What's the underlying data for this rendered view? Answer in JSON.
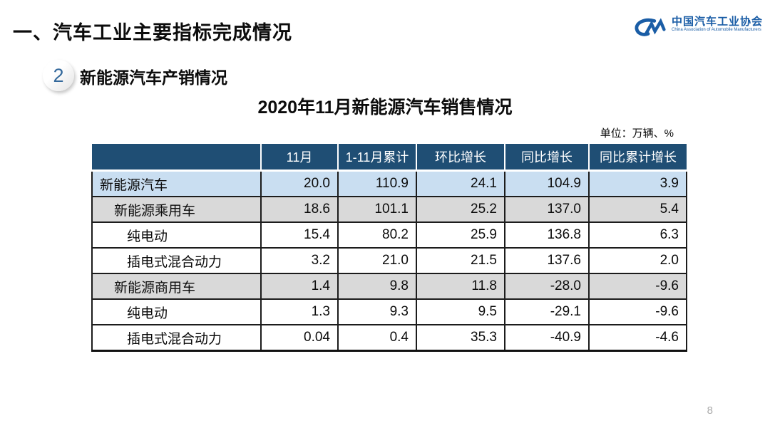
{
  "page": {
    "title": "一、汽车工业主要指标完成情况",
    "page_number": "8"
  },
  "logo": {
    "icon": "cm-logo-icon",
    "name_cn": "中国汽车工业协会",
    "name_en": "China Association of Automobile Manufacturers"
  },
  "section": {
    "badge": "2",
    "heading": "新能源汽车产销情况"
  },
  "table": {
    "title": "2020年11月新能源汽车销售情况",
    "unit_label": "单位：万辆、%",
    "columns": [
      "",
      "11月",
      "1-11月累计",
      "环比增长",
      "同比增长",
      "同比累计增长"
    ],
    "rows": [
      {
        "label": "新能源汽车",
        "indent": 0,
        "style": "highlight-blue",
        "values": [
          "20.0",
          "110.9",
          "24.1",
          "104.9",
          "3.9"
        ]
      },
      {
        "label": "新能源乘用车",
        "indent": 1,
        "style": "highlight-gray",
        "values": [
          "18.6",
          "101.1",
          "25.2",
          "137.0",
          "5.4"
        ]
      },
      {
        "label": "纯电动",
        "indent": 2,
        "style": "plain",
        "values": [
          "15.4",
          "80.2",
          "25.9",
          "136.8",
          "6.3"
        ]
      },
      {
        "label": "插电式混合动力",
        "indent": 2,
        "style": "plain",
        "values": [
          "3.2",
          "21.0",
          "21.5",
          "137.6",
          "2.0"
        ]
      },
      {
        "label": "新能源商用车",
        "indent": 1,
        "style": "highlight-gray",
        "values": [
          "1.4",
          "9.8",
          "11.8",
          "-28.0",
          "-9.6"
        ]
      },
      {
        "label": "纯电动",
        "indent": 2,
        "style": "plain",
        "values": [
          "1.3",
          "9.3",
          "9.5",
          "-29.1",
          "-9.6"
        ]
      },
      {
        "label": "插电式混合动力",
        "indent": 2,
        "style": "plain",
        "values": [
          "0.04",
          "0.4",
          "35.3",
          "-40.9",
          "-4.6"
        ]
      }
    ]
  },
  "colors": {
    "header_bg": "#1f4e74",
    "row_blue": "#c9def1",
    "row_gray": "#d9d9d9",
    "logo_blue": "#1a5da6",
    "badge_number_blue": "#33689b",
    "page_number_gray": "#ababab"
  }
}
